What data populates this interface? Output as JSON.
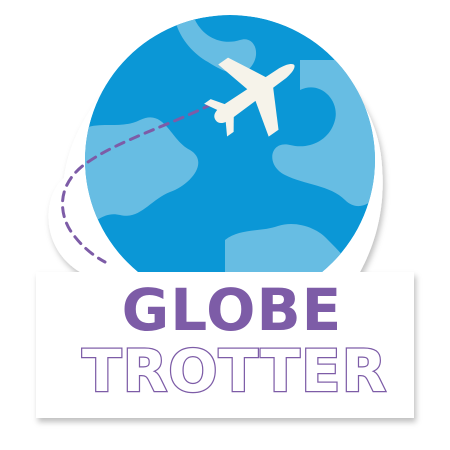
{
  "sticker": {
    "line1": "GLOBE",
    "line2": "TROTTER"
  },
  "icons": {
    "globe": "globe-icon",
    "airplane": "airplane-icon",
    "flight_path": "dashed-flight-path"
  },
  "colors": {
    "ocean": "#0b97d6",
    "land": "#67bde3",
    "purple": "#7d5ca7",
    "plane": "#f6f3ea",
    "banner": "#ffffff"
  }
}
